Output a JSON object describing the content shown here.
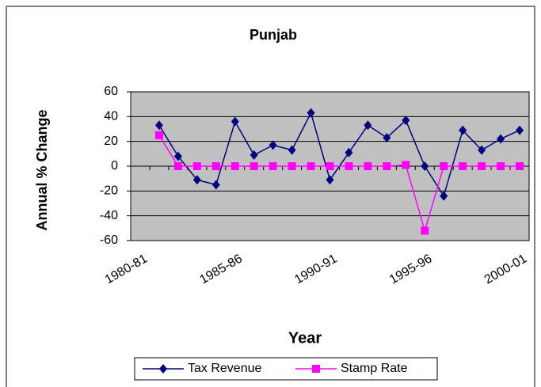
{
  "chart_data": {
    "type": "line",
    "title": "Punjab",
    "xlabel": "Year",
    "ylabel": "Annual % Change",
    "categories": [
      "1980-81",
      null,
      null,
      null,
      null,
      "1985-86",
      null,
      null,
      null,
      null,
      "1990-91",
      null,
      null,
      null,
      null,
      "1995-96",
      null,
      null,
      null,
      null,
      "2000-01"
    ],
    "series": [
      {
        "name": "Tax Revenue",
        "color": "#000080",
        "marker": "diamond",
        "values": [
          null,
          33,
          8,
          -11,
          -15,
          36,
          9,
          17,
          13,
          43,
          -11,
          11,
          33,
          23,
          37,
          0,
          -24,
          29,
          13,
          22,
          29
        ]
      },
      {
        "name": "Stamp Rate",
        "color": "#ff00ff",
        "marker": "square",
        "values": [
          null,
          25,
          0,
          0,
          0,
          0,
          0,
          0,
          0,
          0,
          0,
          0,
          0,
          0,
          1,
          -52,
          0,
          0,
          0,
          0,
          0
        ]
      }
    ],
    "ylim": [
      -60,
      60
    ],
    "yticks": [
      -60,
      -40,
      -20,
      0,
      20,
      40,
      60
    ],
    "grid": true,
    "legend": "bottom"
  }
}
